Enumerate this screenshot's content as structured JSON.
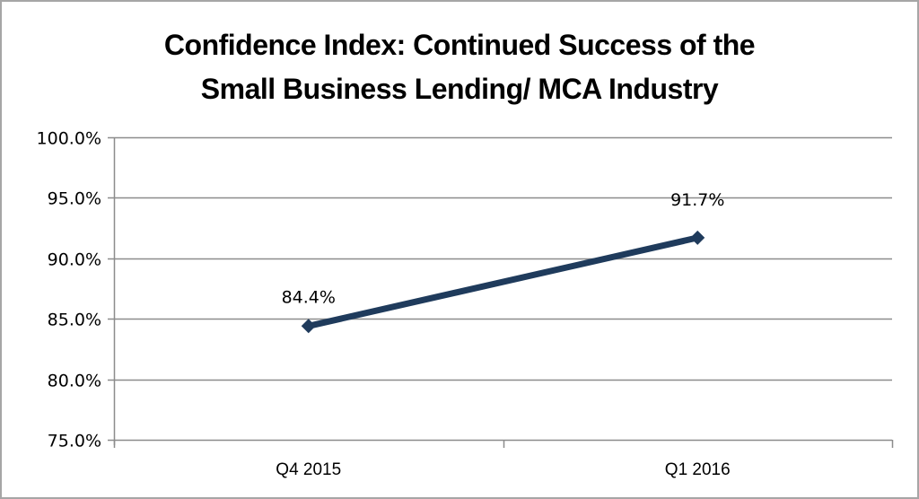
{
  "chart_data": {
    "type": "line",
    "title": "Confidence Index: Continued Success of the Small Business Lending/ MCA Industry",
    "title_lines": [
      "Confidence Index: Continued Success of the",
      "Small Business Lending/ MCA Industry"
    ],
    "categories": [
      "Q4 2015",
      "Q1 2016"
    ],
    "series": [
      {
        "name": "Confidence Index",
        "values": [
          84.4,
          91.7
        ],
        "labels": [
          "84.4%",
          "91.7%"
        ],
        "color": "#1f3b5c",
        "marker": "diamond"
      }
    ],
    "xlabel": "",
    "ylabel": "",
    "ylim": [
      75.0,
      100.0
    ],
    "yticks": [
      "75.0%",
      "80.0%",
      "85.0%",
      "90.0%",
      "95.0%",
      "100.0%"
    ],
    "ytick_values": [
      75,
      80,
      85,
      90,
      95,
      100
    ],
    "grid": true,
    "legend": "none"
  },
  "colors": {
    "line": "#1f3b5c",
    "grid": "#8c8c8c",
    "border": "#a6a6a6"
  }
}
